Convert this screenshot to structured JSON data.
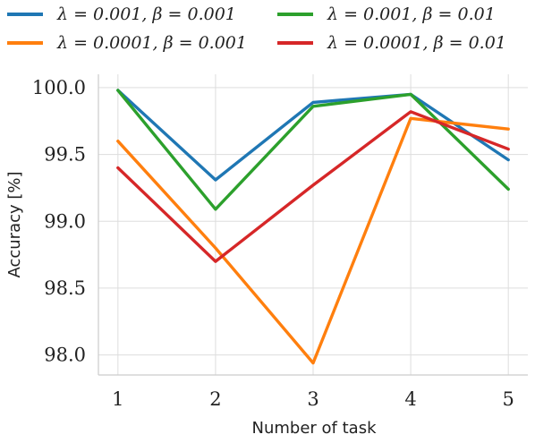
{
  "chart_data": {
    "type": "line",
    "xlabel": "Number of task",
    "ylabel": "Accuracy [%]",
    "x": [
      1,
      2,
      3,
      4,
      5
    ],
    "xticks": [
      "1",
      "2",
      "3",
      "4",
      "5"
    ],
    "yticks": [
      "98.0",
      "98.5",
      "99.0",
      "99.5",
      "100.0"
    ],
    "ylim": [
      97.85,
      100.1
    ],
    "xlim": [
      0.8,
      5.2
    ],
    "grid": true,
    "legend_position": "top",
    "series": [
      {
        "name": "λ = 0.001, β = 0.001",
        "color": "#1f77b4",
        "values": [
          99.98,
          99.31,
          99.89,
          99.95,
          99.46
        ]
      },
      {
        "name": "λ = 0.001, β = 0.01",
        "color": "#2ca02c",
        "values": [
          99.98,
          99.09,
          99.86,
          99.95,
          99.24
        ]
      },
      {
        "name": "λ = 0.0001, β = 0.001",
        "color": "#ff7f0e",
        "values": [
          99.6,
          98.8,
          97.94,
          99.77,
          99.69
        ]
      },
      {
        "name": "λ = 0.0001, β = 0.01",
        "color": "#d62728",
        "values": [
          99.4,
          98.7,
          99.27,
          99.82,
          99.54
        ]
      }
    ]
  }
}
